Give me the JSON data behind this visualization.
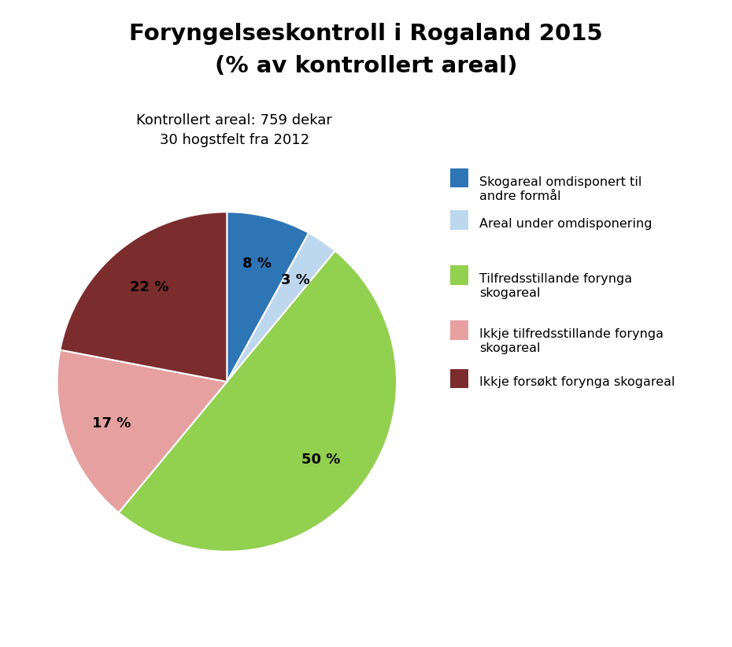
{
  "title_line1": "Foryngelseskontroll i Rogaland 2015",
  "title_line2": "(% av kontrollert areal)",
  "subtitle_line1": "Kontrollert areal: 759 dekar",
  "subtitle_line2": "30 hogstfelt fra 2012",
  "slices": [
    8,
    3,
    50,
    17,
    22
  ],
  "labels": [
    "8 %",
    "3 %",
    "50 %",
    "17 %",
    "22 %"
  ],
  "colors": [
    "#2E75B6",
    "#BDD7EE",
    "#92D050",
    "#E6A0A0",
    "#7B2C2C"
  ],
  "legend_labels": [
    "Skogareal omdisponert til\nandre formål",
    "Areal under omdisponering",
    "Tilfredsstillande forynga\nskogareal",
    "Ikkje tilfredsstillande forynga\nskogareal",
    "Ikkje forsøkt forynga skogareal"
  ],
  "start_angle": 90,
  "background_color": "#FFFFFF"
}
